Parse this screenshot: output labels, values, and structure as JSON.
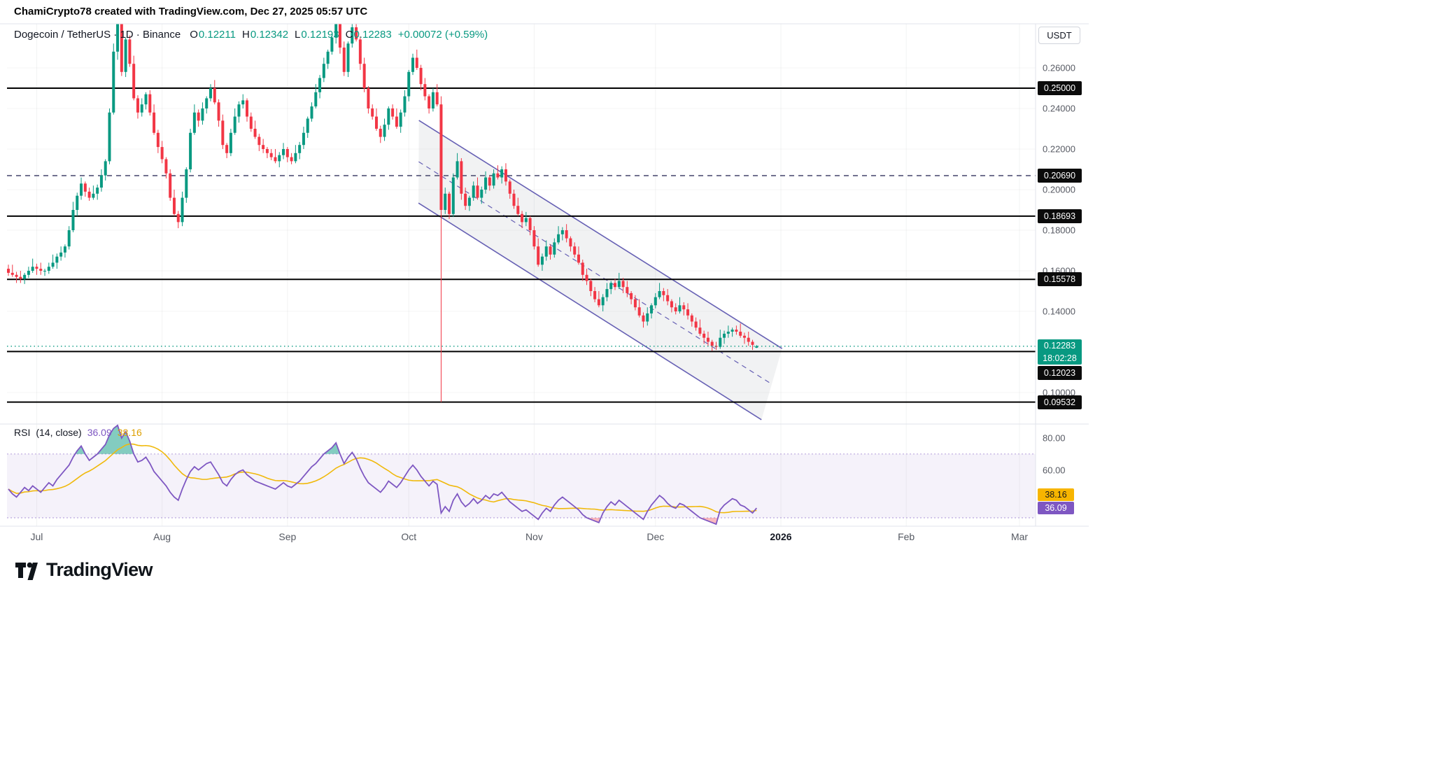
{
  "meta": {
    "attribution": "ChamiCrypto78 created with TradingView.com, Dec 27, 2025 05:57 UTC",
    "brand": "TradingView"
  },
  "legend": {
    "title": "Dogecoin / TetherUS · 1D · Binance",
    "o_label": "O",
    "o": "0.12211",
    "h_label": "H",
    "h": "0.12342",
    "l_label": "L",
    "l": "0.12193",
    "c_label": "C",
    "c": "0.12283",
    "change": "+0.00072 (+0.59%)"
  },
  "price_axis": {
    "currency": "USDT",
    "ticks": [
      {
        "label": "0.26000",
        "value": 0.26
      },
      {
        "label": "0.24000",
        "value": 0.24
      },
      {
        "label": "0.22000",
        "value": 0.22
      },
      {
        "label": "0.20000",
        "value": 0.2
      },
      {
        "label": "0.18000",
        "value": 0.18
      },
      {
        "label": "0.16000",
        "value": 0.16
      },
      {
        "label": "0.14000",
        "value": 0.14
      },
      {
        "label": "0.10000",
        "value": 0.1
      }
    ],
    "levels": [
      {
        "label": "0.25000",
        "value": 0.25,
        "line_style": "solid",
        "line_color": "#000000"
      },
      {
        "label": "0.20690",
        "value": 0.2069,
        "line_style": "dashed",
        "line_color": "#44446b"
      },
      {
        "label": "0.18693",
        "value": 0.18693,
        "line_style": "solid",
        "line_color": "#000000"
      },
      {
        "label": "0.15578",
        "value": 0.15578,
        "line_style": "solid",
        "line_color": "#000000"
      },
      {
        "label": "0.12023",
        "value": 0.12023,
        "line_style": "solid",
        "line_color": "#000000"
      },
      {
        "label": "0.09532",
        "value": 0.09532,
        "line_style": "solid",
        "line_color": "#000000"
      }
    ],
    "current": {
      "label": "0.12283",
      "value": 0.12283,
      "countdown": "18:02:28",
      "color": "#089981"
    }
  },
  "time_axis": {
    "labels": [
      {
        "text": "Jul",
        "index": 7
      },
      {
        "text": "Aug",
        "index": 38
      },
      {
        "text": "Sep",
        "index": 69
      },
      {
        "text": "Oct",
        "index": 99
      },
      {
        "text": "Nov",
        "index": 130
      },
      {
        "text": "Dec",
        "index": 160
      },
      {
        "text": "2026",
        "index": 191,
        "emphasis": true
      },
      {
        "text": "Feb",
        "index": 222
      },
      {
        "text": "Mar",
        "index": 250
      }
    ]
  },
  "rsi_legend": {
    "title": "RSI",
    "params": "(14, close)",
    "value": "36.09",
    "ma_value": "38.16"
  },
  "rsi_axis": {
    "labels": [
      {
        "text": "80.00",
        "value": 80
      },
      {
        "text": "60.00",
        "value": 60
      }
    ],
    "value_badge": {
      "text": "36.09",
      "value": 36.09,
      "bg": "#7e57c2",
      "fg": "#ffffff"
    },
    "ma_badge": {
      "text": "38.16",
      "value": 38.16,
      "bg": "#f7b500",
      "fg": "#1a1a1a"
    }
  },
  "chart_data": [
    {
      "type": "candlestick",
      "title": "Dogecoin / TetherUS · 1D · Binance",
      "timeframe": "1D",
      "ylim": [
        0.0845,
        0.2817
      ],
      "colors": {
        "up": "#089981",
        "down": "#f23645"
      },
      "first_open": 0.161,
      "closes": [
        0.159,
        0.158,
        0.157,
        0.156,
        0.158,
        0.16,
        0.162,
        0.161,
        0.16,
        0.16,
        0.162,
        0.164,
        0.167,
        0.169,
        0.172,
        0.18,
        0.19,
        0.197,
        0.203,
        0.199,
        0.196,
        0.198,
        0.201,
        0.207,
        0.214,
        0.238,
        0.268,
        0.282,
        0.258,
        0.274,
        0.262,
        0.245,
        0.238,
        0.242,
        0.247,
        0.238,
        0.228,
        0.221,
        0.215,
        0.208,
        0.196,
        0.188,
        0.184,
        0.196,
        0.21,
        0.228,
        0.238,
        0.234,
        0.24,
        0.245,
        0.25,
        0.243,
        0.234,
        0.222,
        0.218,
        0.228,
        0.236,
        0.242,
        0.244,
        0.236,
        0.23,
        0.226,
        0.222,
        0.22,
        0.218,
        0.216,
        0.214,
        0.217,
        0.22,
        0.216,
        0.214,
        0.218,
        0.222,
        0.228,
        0.235,
        0.241,
        0.248,
        0.255,
        0.262,
        0.268,
        0.275,
        0.284,
        0.27,
        0.258,
        0.272,
        0.28,
        0.274,
        0.262,
        0.25,
        0.24,
        0.236,
        0.23,
        0.226,
        0.232,
        0.24,
        0.236,
        0.231,
        0.238,
        0.246,
        0.258,
        0.265,
        0.26,
        0.252,
        0.246,
        0.24,
        0.248,
        0.242,
        0.19,
        0.198,
        0.188,
        0.206,
        0.214,
        0.198,
        0.192,
        0.196,
        0.202,
        0.196,
        0.2,
        0.206,
        0.202,
        0.208,
        0.206,
        0.21,
        0.204,
        0.198,
        0.192,
        0.188,
        0.184,
        0.186,
        0.18,
        0.172,
        0.163,
        0.167,
        0.172,
        0.168,
        0.174,
        0.178,
        0.18,
        0.176,
        0.172,
        0.168,
        0.164,
        0.158,
        0.155,
        0.15,
        0.146,
        0.143,
        0.147,
        0.151,
        0.154,
        0.152,
        0.155,
        0.152,
        0.149,
        0.146,
        0.142,
        0.138,
        0.135,
        0.139,
        0.143,
        0.147,
        0.15,
        0.148,
        0.145,
        0.142,
        0.14,
        0.143,
        0.141,
        0.138,
        0.135,
        0.132,
        0.129,
        0.127,
        0.125,
        0.123,
        0.1225,
        0.127,
        0.129,
        0.13,
        0.131,
        0.13,
        0.128,
        0.127,
        0.125,
        0.1235,
        0.12283
      ],
      "special_candles": {
        "27": [
          0.268,
          0.2855,
          0.264,
          0.282
        ],
        "81": [
          0.275,
          0.286,
          0.272,
          0.284
        ],
        "85": [
          0.272,
          0.285,
          0.27,
          0.28
        ],
        "107": [
          0.242,
          0.246,
          0.0953,
          0.19
        ],
        "185": [
          0.12211,
          0.12342,
          0.12193,
          0.12283
        ]
      },
      "wick_high_pattern": [
        0.002,
        0.004,
        0.0015,
        0.003,
        0.001
      ],
      "wick_low_pattern": [
        0.0015,
        0.001,
        0.003,
        0.002,
        0.0025
      ],
      "channel": {
        "upper": {
          "i1": 101.5,
          "p1": 0.2341,
          "i2": 191.3,
          "p2": 0.1217
        },
        "lower": {
          "i1": 101.4,
          "p1": 0.1934,
          "i2": 186.2,
          "p2": 0.0866
        },
        "midline_dashed": true,
        "color": "#6660b4",
        "fill": "rgba(120,123,134,0.10)"
      }
    },
    {
      "type": "line",
      "title": "RSI (14, close)",
      "ylim": [
        24,
        88
      ],
      "band": [
        30,
        70
      ],
      "band_fill": "rgba(126,87,194,0.08)",
      "band_line": "rgba(126,87,194,0.5)",
      "overbought_fill": "rgba(8,153,129,0.5)",
      "oversold_fill": "rgba(242,54,69,0.35)",
      "gridlines": [
        80,
        60
      ],
      "series": [
        {
          "name": "RSI",
          "color": "#7e57c2",
          "values": [
            48,
            45,
            43,
            46,
            49,
            47,
            50,
            48,
            46,
            49,
            52,
            50,
            54,
            57,
            60,
            63,
            68,
            72,
            75,
            70,
            66,
            68,
            70,
            73,
            76,
            82,
            86,
            88,
            80,
            84,
            78,
            70,
            65,
            66,
            68,
            64,
            59,
            56,
            53,
            50,
            46,
            43,
            41,
            48,
            54,
            59,
            62,
            60,
            62,
            64,
            65,
            61,
            57,
            52,
            50,
            54,
            57,
            59,
            60,
            57,
            55,
            53,
            52,
            51,
            50,
            49,
            48,
            50,
            52,
            50,
            49,
            51,
            53,
            56,
            59,
            62,
            64,
            67,
            70,
            72,
            74,
            77,
            70,
            64,
            68,
            71,
            67,
            61,
            56,
            52,
            50,
            48,
            46,
            49,
            53,
            51,
            49,
            52,
            56,
            60,
            63,
            60,
            56,
            53,
            50,
            53,
            51,
            33,
            37,
            34,
            41,
            45,
            40,
            37,
            39,
            42,
            39,
            41,
            44,
            42,
            45,
            44,
            46,
            43,
            40,
            38,
            36,
            34,
            35,
            33,
            31,
            29,
            33,
            36,
            34,
            38,
            41,
            43,
            41,
            39,
            37,
            35,
            32,
            30,
            29,
            28,
            27,
            33,
            37,
            40,
            38,
            41,
            39,
            37,
            35,
            33,
            31,
            29,
            34,
            38,
            41,
            44,
            42,
            39,
            37,
            36,
            39,
            38,
            36,
            34,
            32,
            30,
            29,
            28,
            27,
            26,
            35,
            38,
            40,
            42,
            41,
            38,
            37,
            35,
            33,
            36.09
          ]
        },
        {
          "name": "RSI-based MA",
          "color": "#f0b90b",
          "period": 14
        }
      ]
    }
  ]
}
